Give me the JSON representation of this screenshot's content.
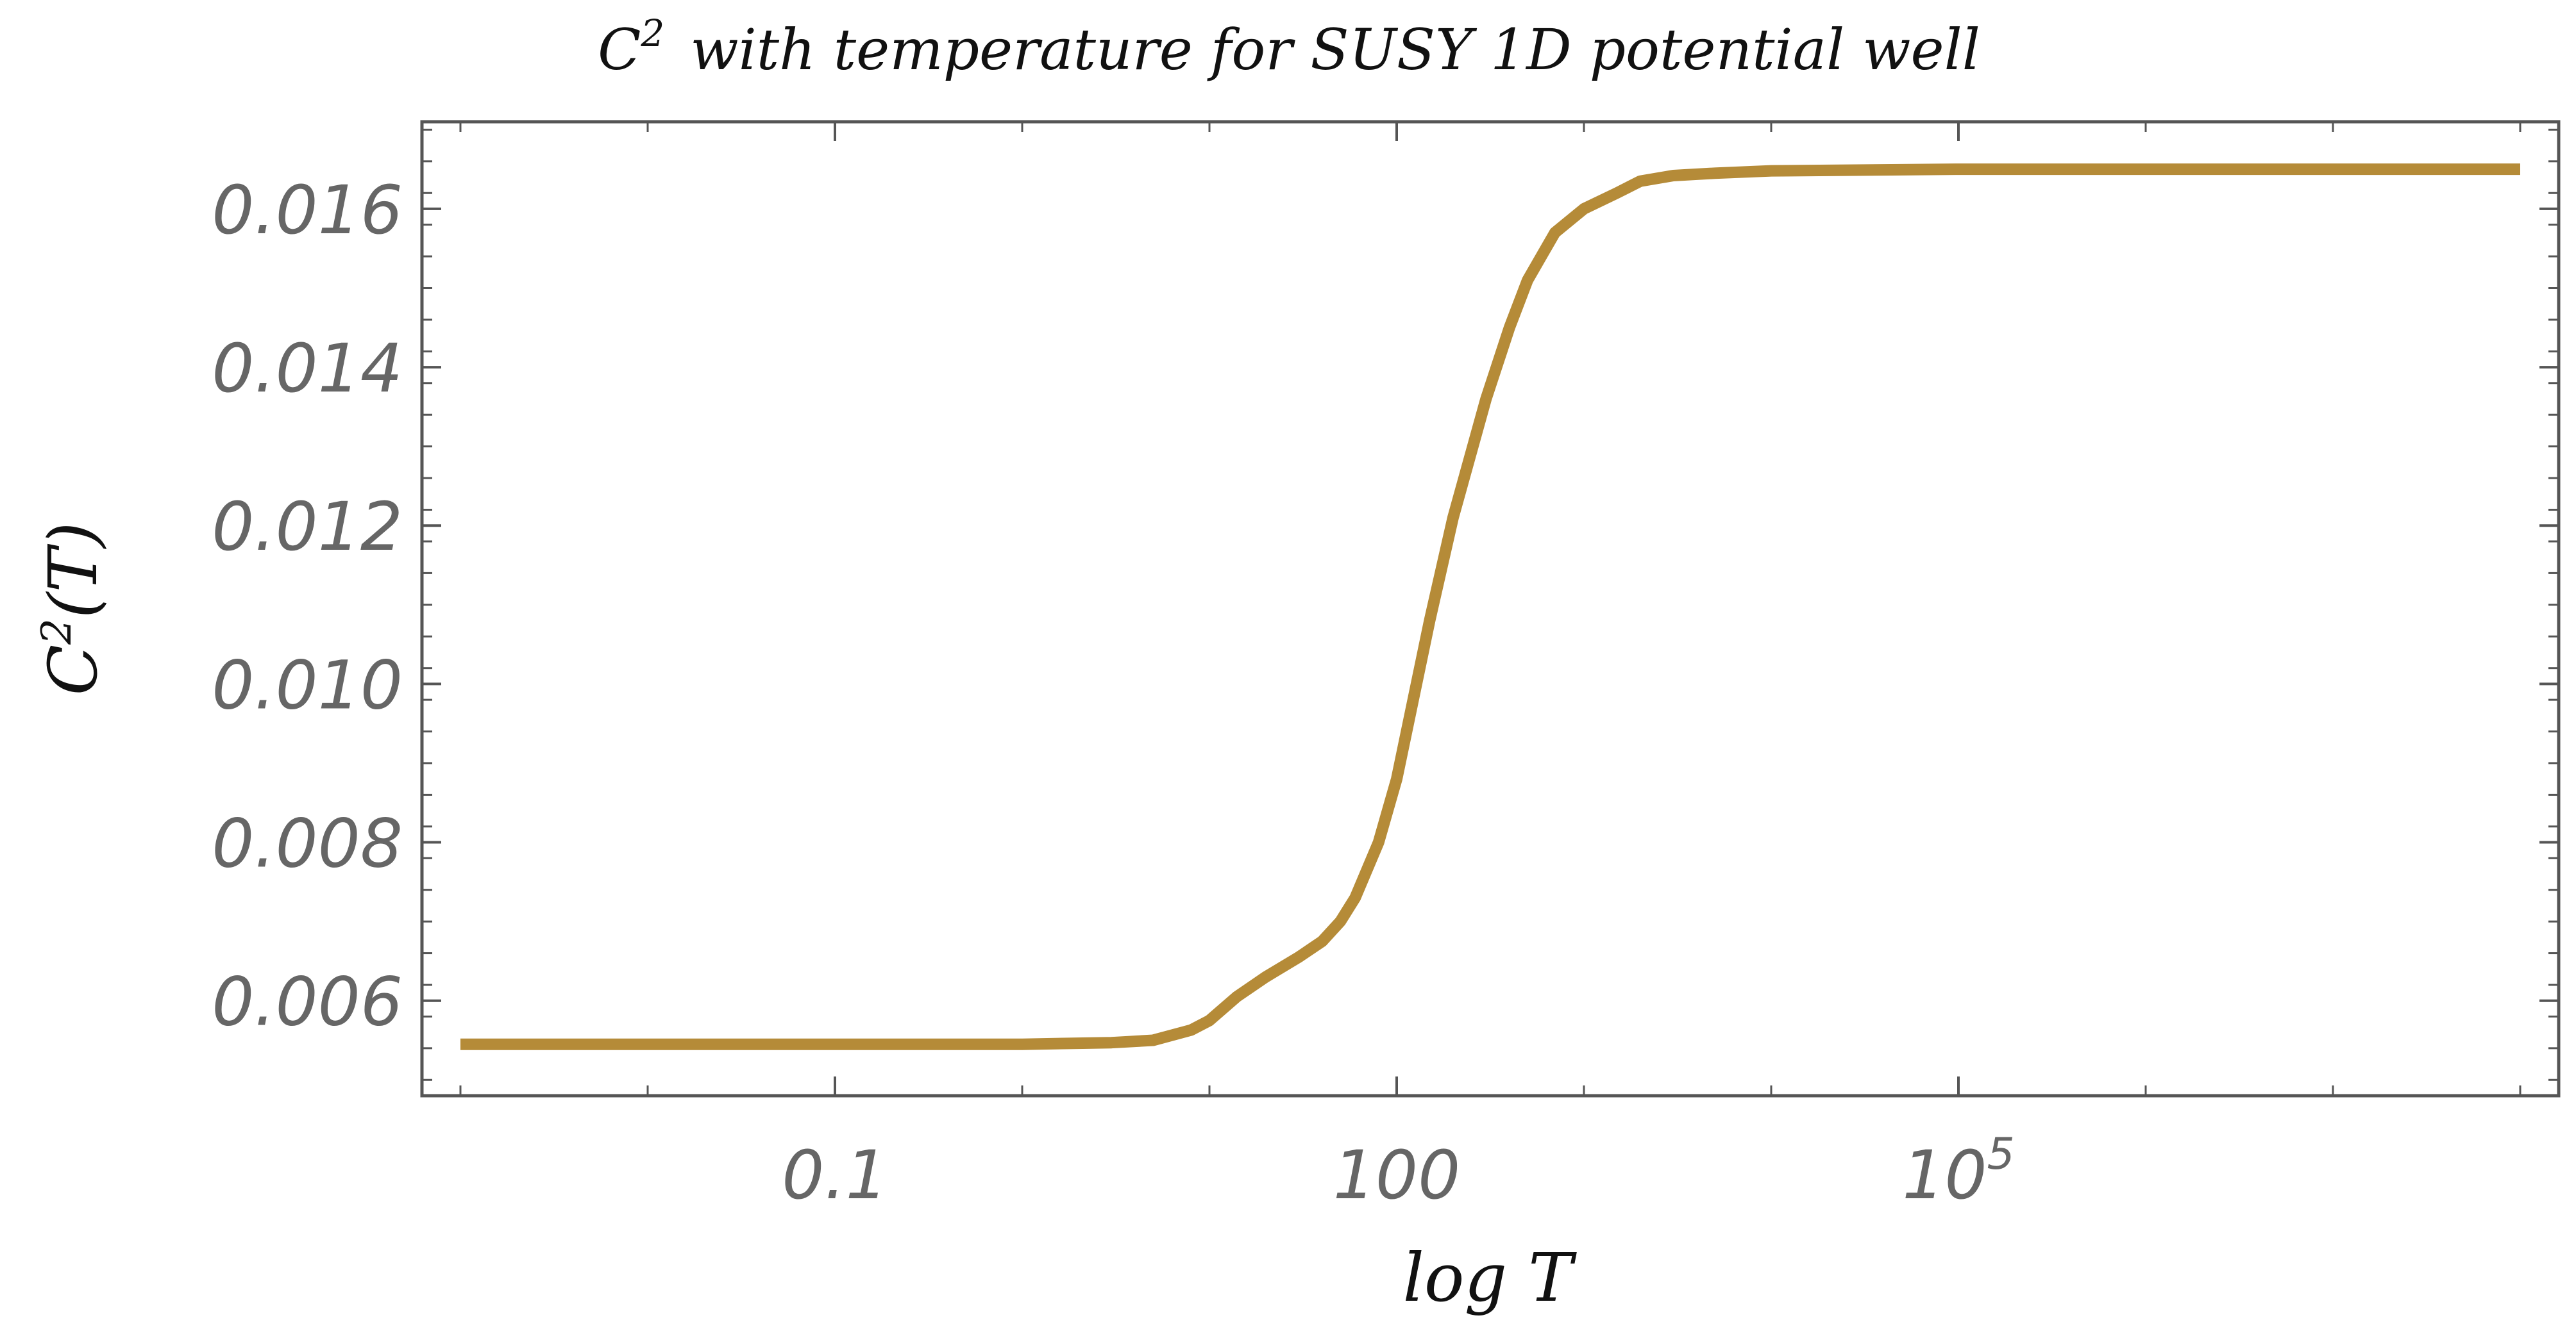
{
  "chart_data": {
    "type": "line",
    "title_text": "with temperature for SUSY 1D potential well",
    "title_symbol": "C",
    "title_symbol_exp": "2",
    "xlabel": "log T",
    "ylabel_main": "C",
    "ylabel_exp": "2",
    "ylabel_arg": "(T)",
    "x_scale": "log",
    "xlim": [
      0.001,
      100000000
    ],
    "ylim": [
      0.0048,
      0.0171
    ],
    "yticks": [
      {
        "value": 0.006,
        "label": "0.006"
      },
      {
        "value": 0.008,
        "label": "0.008"
      },
      {
        "value": 0.01,
        "label": "0.010"
      },
      {
        "value": 0.012,
        "label": "0.012"
      },
      {
        "value": 0.014,
        "label": "0.014"
      },
      {
        "value": 0.016,
        "label": "0.016"
      }
    ],
    "xticks": [
      {
        "value": 0.1,
        "label": "0.1"
      },
      {
        "value": 100,
        "label": "100"
      },
      {
        "value": 100000,
        "label": "10",
        "exp": "5"
      }
    ],
    "grid": false,
    "series": [
      {
        "color": "#b58b38",
        "x": [
          0.001,
          0.01,
          0.1,
          1,
          3,
          5,
          8,
          10,
          14,
          20,
          30,
          40,
          50,
          60,
          80,
          100,
          150,
          200,
          300,
          400,
          500,
          700,
          1000,
          1500,
          2000,
          3000,
          5000,
          10000,
          100000,
          1000000,
          100000000
        ],
        "y": [
          0.00545,
          0.00545,
          0.00545,
          0.00545,
          0.00547,
          0.0055,
          0.00563,
          0.00575,
          0.00605,
          0.0063,
          0.00655,
          0.00675,
          0.007,
          0.0073,
          0.008,
          0.0088,
          0.0108,
          0.0121,
          0.0136,
          0.0145,
          0.0151,
          0.0157,
          0.016,
          0.0162,
          0.01635,
          0.01642,
          0.01645,
          0.01648,
          0.0165,
          0.0165,
          0.0165
        ]
      }
    ]
  }
}
